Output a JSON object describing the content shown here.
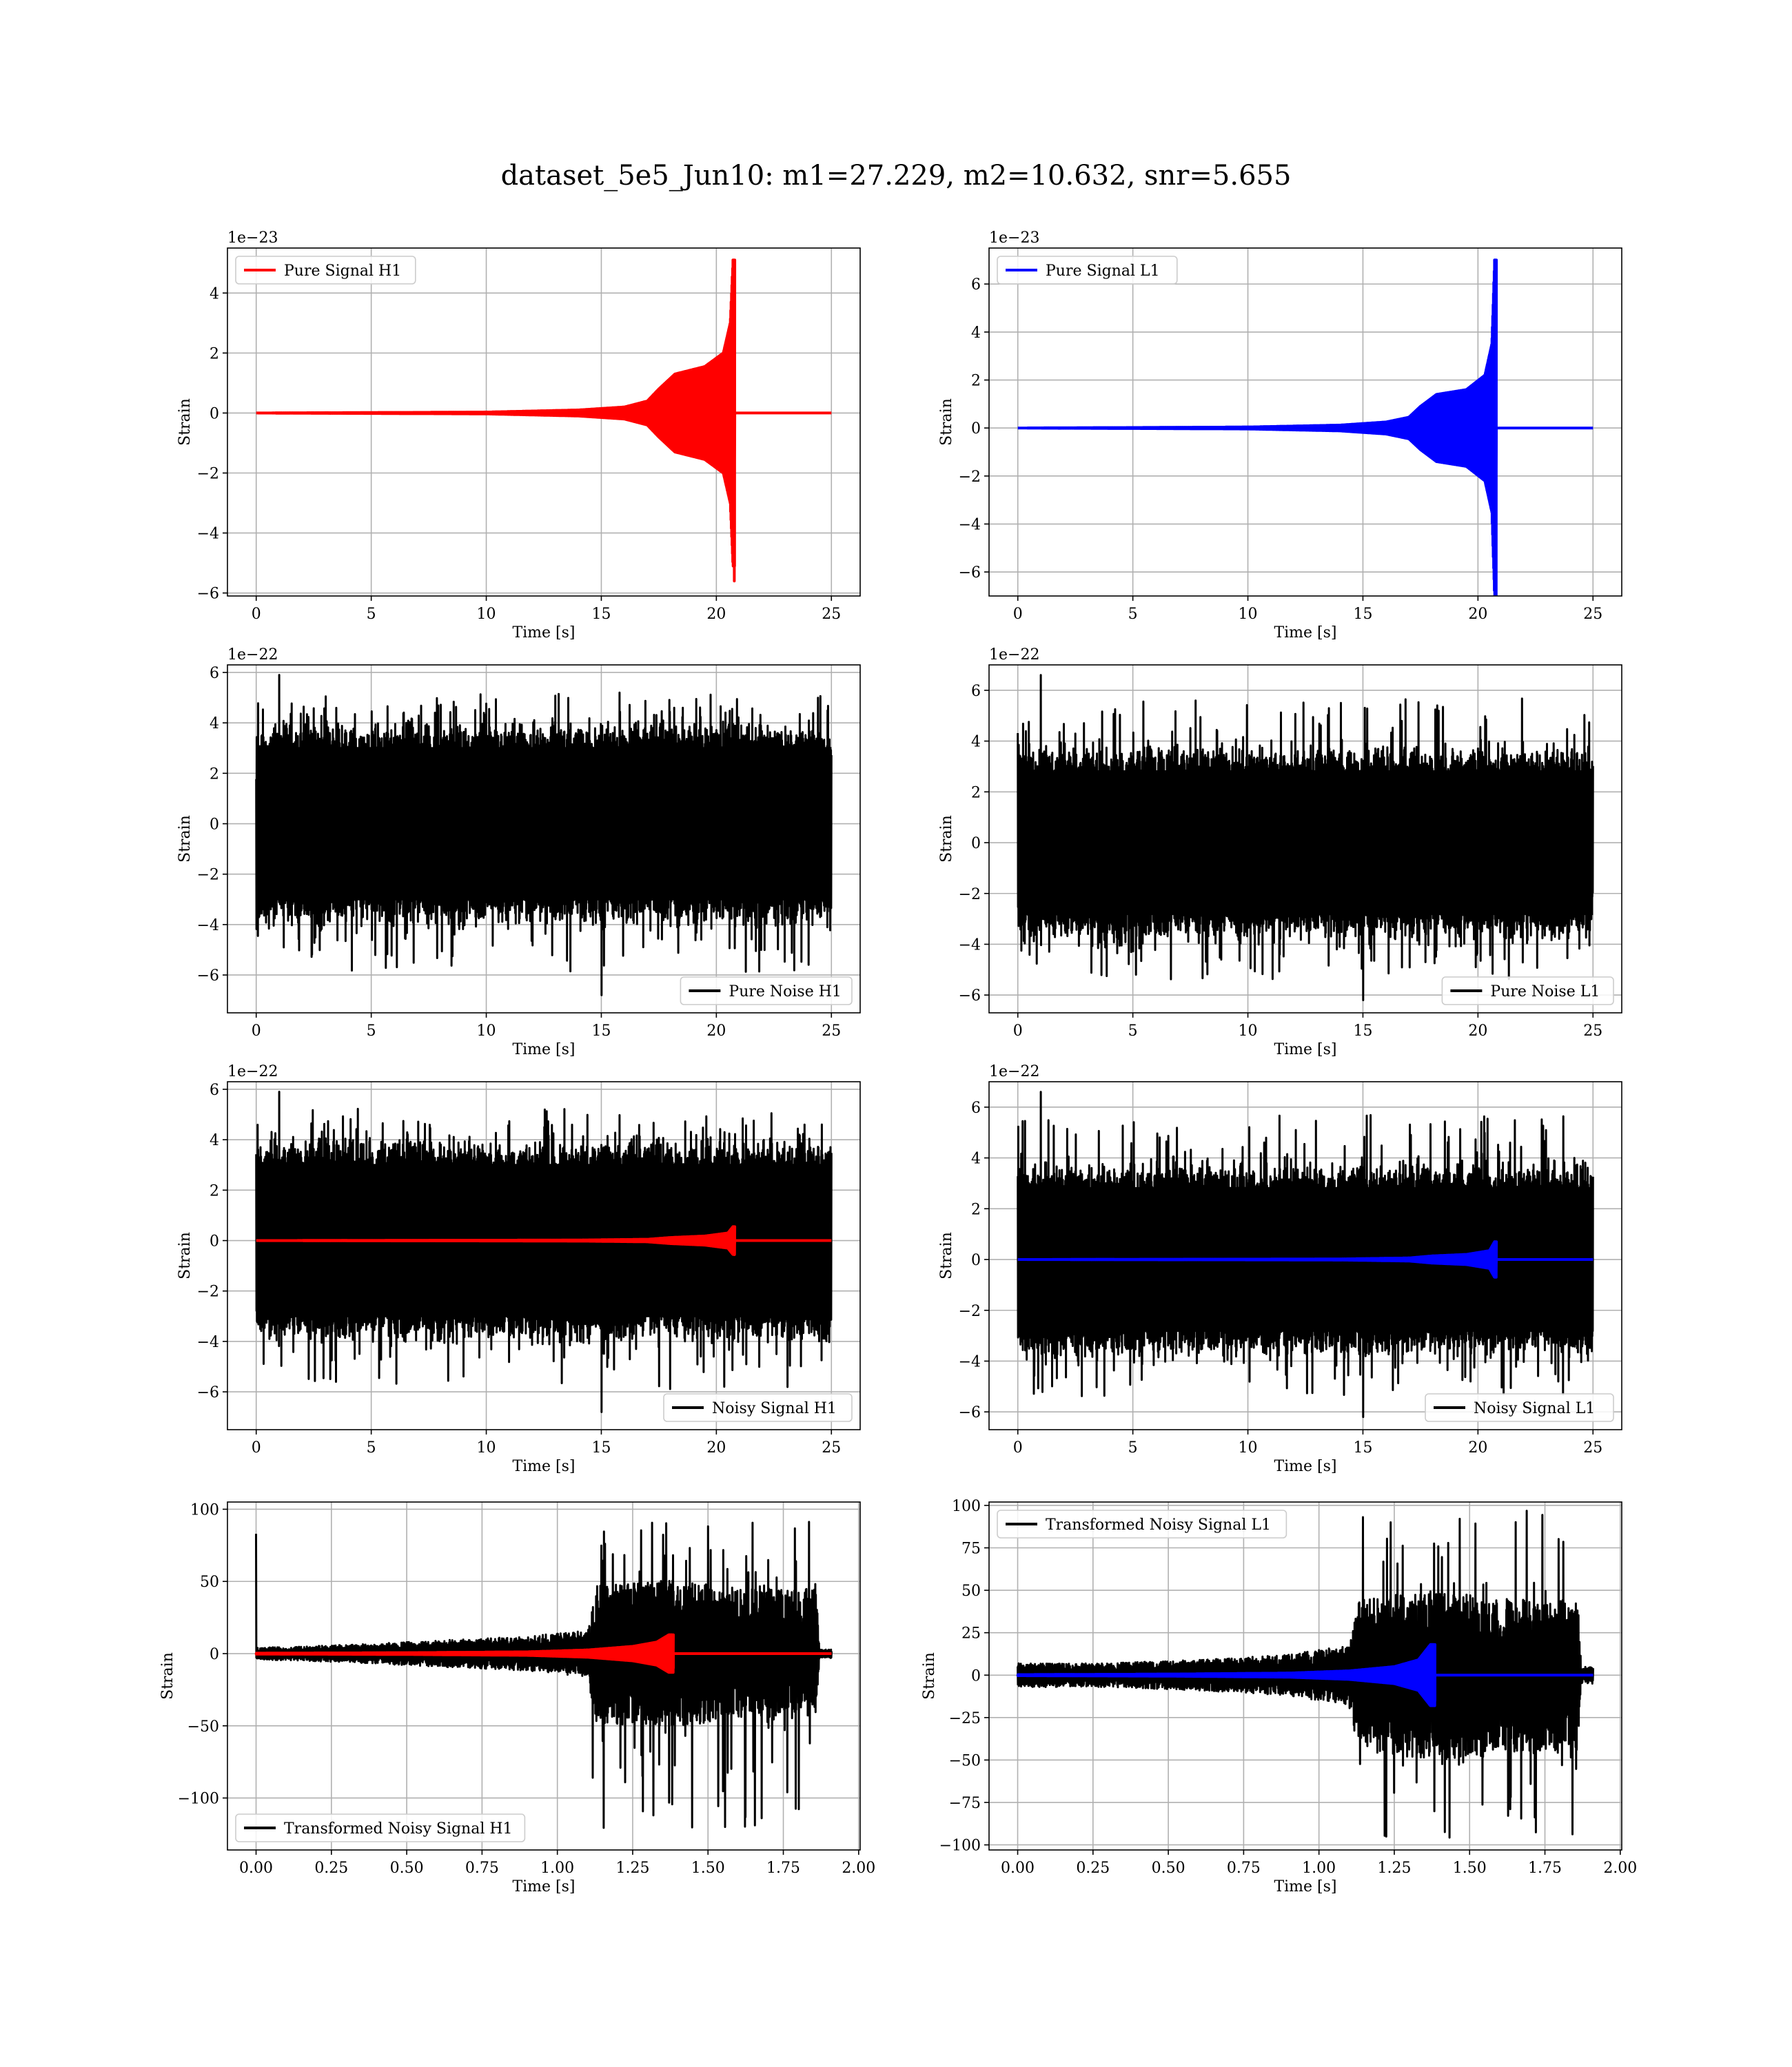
{
  "figure": {
    "title": "dataset_5e5_Jun10: m1=27.229, m2=10.632, snr=5.655"
  },
  "colors": {
    "h1": "#ff0000",
    "l1": "#0000ff",
    "noise": "#000000",
    "grid": "#b0b0b0"
  },
  "chart_data": [
    {
      "id": "pure-signal-h1",
      "type": "line",
      "xlabel": "Time [s]",
      "ylabel": "Strain",
      "offset_text": "1e−23",
      "xlim": [
        -1.25,
        26.25
      ],
      "ylim": [
        -6.1,
        5.5
      ],
      "xticks": [
        0,
        5,
        10,
        15,
        20,
        25
      ],
      "yticks": [
        -6,
        -4,
        -2,
        0,
        2,
        4
      ],
      "ytick_labels": [
        "−6",
        "−4",
        "−2",
        "0",
        "2",
        "4"
      ],
      "legend": "top-left",
      "series": [
        {
          "name": "Pure Signal H1",
          "color": "#ff0000",
          "kind": "chirp",
          "x_end": 20.8,
          "envelope": [
            [
              0,
              0
            ],
            [
              10,
              0.03
            ],
            [
              14,
              0.1
            ],
            [
              16,
              0.2
            ],
            [
              17,
              0.4
            ],
            [
              17.5,
              0.8
            ],
            [
              18.2,
              1.3
            ],
            [
              19.5,
              1.55
            ],
            [
              20.3,
              2.0
            ],
            [
              20.6,
              3.0
            ],
            [
              20.72,
              5.1
            ],
            [
              20.75,
              -5.6
            ]
          ],
          "peak_max": 5.1,
          "peak_min": -5.6,
          "legend": true
        }
      ]
    },
    {
      "id": "pure-signal-l1",
      "type": "line",
      "xlabel": "Time [s]",
      "ylabel": "Strain",
      "offset_text": "1e−23",
      "xlim": [
        -1.25,
        26.25
      ],
      "ylim": [
        -7.0,
        7.5
      ],
      "xticks": [
        0,
        5,
        10,
        15,
        20,
        25
      ],
      "yticks": [
        -6,
        -4,
        -2,
        0,
        2,
        4,
        6
      ],
      "ytick_labels": [
        "−6",
        "−4",
        "−2",
        "0",
        "2",
        "4",
        "6"
      ],
      "legend": "top-left",
      "series": [
        {
          "name": "Pure Signal L1",
          "color": "#0000ff",
          "kind": "chirp",
          "x_end": 20.8,
          "envelope": [
            [
              0,
              0
            ],
            [
              10,
              0.04
            ],
            [
              14,
              0.12
            ],
            [
              16,
              0.25
            ],
            [
              17,
              0.45
            ],
            [
              17.5,
              0.9
            ],
            [
              18.2,
              1.4
            ],
            [
              19.5,
              1.6
            ],
            [
              20.3,
              2.2
            ],
            [
              20.6,
              3.5
            ],
            [
              20.72,
              7.0
            ],
            [
              20.75,
              -6.5
            ]
          ],
          "peak_max": 7.0,
          "peak_min": -6.5,
          "legend": true
        }
      ]
    },
    {
      "id": "pure-noise-h1",
      "type": "line",
      "xlabel": "Time [s]",
      "ylabel": "Strain",
      "offset_text": "1e−22",
      "xlim": [
        -1.25,
        26.25
      ],
      "ylim": [
        -7.5,
        6.3
      ],
      "xticks": [
        0,
        5,
        10,
        15,
        20,
        25
      ],
      "yticks": [
        -6,
        -4,
        -2,
        0,
        2,
        4,
        6
      ],
      "ytick_labels": [
        "−6",
        "−4",
        "−2",
        "0",
        "2",
        "4",
        "6"
      ],
      "legend": "bottom-right",
      "series": [
        {
          "name": "Pure Noise H1",
          "color": "#000000",
          "kind": "noise",
          "x_range": [
            0,
            25
          ],
          "core": 3.2,
          "max": 5.9,
          "min": -6.8,
          "legend": true
        }
      ]
    },
    {
      "id": "pure-noise-l1",
      "type": "line",
      "xlabel": "Time [s]",
      "ylabel": "Strain",
      "offset_text": "1e−22",
      "xlim": [
        -1.25,
        26.25
      ],
      "ylim": [
        -6.7,
        7.0
      ],
      "xticks": [
        0,
        5,
        10,
        15,
        20,
        25
      ],
      "yticks": [
        -6,
        -4,
        -2,
        0,
        2,
        4,
        6
      ],
      "ytick_labels": [
        "−6",
        "−4",
        "−2",
        "0",
        "2",
        "4",
        "6"
      ],
      "legend": "bottom-right",
      "series": [
        {
          "name": "Pure Noise L1",
          "color": "#000000",
          "kind": "noise",
          "x_range": [
            0,
            25
          ],
          "core": 3.0,
          "max": 6.6,
          "min": -6.2,
          "legend": true
        }
      ]
    },
    {
      "id": "noisy-signal-h1",
      "type": "line",
      "xlabel": "Time [s]",
      "ylabel": "Strain",
      "offset_text": "1e−22",
      "xlim": [
        -1.25,
        26.25
      ],
      "ylim": [
        -7.5,
        6.3
      ],
      "xticks": [
        0,
        5,
        10,
        15,
        20,
        25
      ],
      "yticks": [
        -6,
        -4,
        -2,
        0,
        2,
        4,
        6
      ],
      "ytick_labels": [
        "−6",
        "−4",
        "−2",
        "0",
        "2",
        "4",
        "6"
      ],
      "legend": "bottom-right",
      "series": [
        {
          "name": "Noisy Signal H1",
          "color": "#000000",
          "kind": "noise",
          "x_range": [
            0,
            25
          ],
          "core": 3.2,
          "max": 5.9,
          "min": -6.8,
          "legend": true
        },
        {
          "name": "",
          "color": "#ff0000",
          "kind": "chirp",
          "x_end": 20.8,
          "envelope": [
            [
              0,
              0
            ],
            [
              14,
              0.02
            ],
            [
              17,
              0.05
            ],
            [
              18,
              0.12
            ],
            [
              19.5,
              0.18
            ],
            [
              20.5,
              0.3
            ],
            [
              20.72,
              0.55
            ],
            [
              20.75,
              -0.56
            ]
          ],
          "peak_max": 0.55,
          "peak_min": -0.56,
          "legend": false
        }
      ]
    },
    {
      "id": "noisy-signal-l1",
      "type": "line",
      "xlabel": "Time [s]",
      "ylabel": "Strain",
      "offset_text": "1e−22",
      "xlim": [
        -1.25,
        26.25
      ],
      "ylim": [
        -6.7,
        7.0
      ],
      "xticks": [
        0,
        5,
        10,
        15,
        20,
        25
      ],
      "yticks": [
        -6,
        -4,
        -2,
        0,
        2,
        4,
        6
      ],
      "ytick_labels": [
        "−6",
        "−4",
        "−2",
        "0",
        "2",
        "4",
        "6"
      ],
      "legend": "bottom-right",
      "series": [
        {
          "name": "Noisy Signal L1",
          "color": "#000000",
          "kind": "noise",
          "x_range": [
            0,
            25
          ],
          "core": 3.0,
          "max": 6.6,
          "min": -6.2,
          "legend": true
        },
        {
          "name": "",
          "color": "#0000ff",
          "kind": "chirp",
          "x_end": 20.8,
          "envelope": [
            [
              0,
              0
            ],
            [
              14,
              0.02
            ],
            [
              17,
              0.06
            ],
            [
              18,
              0.14
            ],
            [
              19.5,
              0.2
            ],
            [
              20.5,
              0.35
            ],
            [
              20.72,
              0.7
            ],
            [
              20.75,
              -0.65
            ]
          ],
          "peak_max": 0.7,
          "peak_min": -0.65,
          "legend": false
        }
      ]
    },
    {
      "id": "transformed-h1",
      "type": "line",
      "xlabel": "Time [s]",
      "ylabel": "Strain",
      "offset_text": "",
      "xlim": [
        -0.095,
        2.005
      ],
      "ylim": [
        -136,
        105
      ],
      "xticks": [
        0.0,
        0.25,
        0.5,
        0.75,
        1.0,
        1.25,
        1.5,
        1.75,
        2.0
      ],
      "xtick_labels": [
        "0.00",
        "0.25",
        "0.50",
        "0.75",
        "1.00",
        "1.25",
        "1.50",
        "1.75",
        "2.00"
      ],
      "yticks": [
        -100,
        -50,
        0,
        50,
        100
      ],
      "ytick_labels": [
        "−100",
        "−50",
        "0",
        "50",
        "100"
      ],
      "legend": "bottom-left",
      "series": [
        {
          "name": "Transformed Noisy Signal H1",
          "color": "#000000",
          "kind": "tnoise",
          "x_range": [
            0,
            1.91
          ],
          "spike": 83,
          "max": 93,
          "min": -128,
          "legend": true,
          "envelope": [
            [
              0,
              4
            ],
            [
              0.3,
              6
            ],
            [
              0.6,
              9
            ],
            [
              0.9,
              12
            ],
            [
              1.1,
              16
            ],
            [
              1.13,
              48
            ],
            [
              1.4,
              52
            ],
            [
              1.6,
              45
            ],
            [
              1.86,
              45
            ],
            [
              1.87,
              3
            ],
            [
              1.91,
              3
            ]
          ]
        },
        {
          "name": "",
          "color": "#ff0000",
          "kind": "tchirp",
          "x_end": 1.385,
          "envelope": [
            [
              0,
              0.3
            ],
            [
              0.5,
              0.6
            ],
            [
              0.9,
              1.2
            ],
            [
              1.1,
              2.5
            ],
            [
              1.25,
              5
            ],
            [
              1.33,
              8
            ],
            [
              1.37,
              13
            ],
            [
              1.385,
              -10
            ]
          ],
          "legend": false
        }
      ]
    },
    {
      "id": "transformed-l1",
      "type": "line",
      "xlabel": "Time [s]",
      "ylabel": "Strain",
      "offset_text": "",
      "xlim": [
        -0.095,
        2.005
      ],
      "ylim": [
        -103,
        102
      ],
      "xticks": [
        0.0,
        0.25,
        0.5,
        0.75,
        1.0,
        1.25,
        1.5,
        1.75,
        2.0
      ],
      "xtick_labels": [
        "0.00",
        "0.25",
        "0.50",
        "0.75",
        "1.00",
        "1.25",
        "1.50",
        "1.75",
        "2.00"
      ],
      "yticks": [
        -100,
        -75,
        -50,
        -25,
        0,
        25,
        50,
        75,
        100
      ],
      "ytick_labels": [
        "−100",
        "−75",
        "−50",
        "−25",
        "0",
        "25",
        "50",
        "75",
        "100"
      ],
      "legend": "top-left",
      "series": [
        {
          "name": "Transformed Noisy Signal L1",
          "color": "#000000",
          "kind": "tnoise",
          "x_range": [
            0,
            1.91
          ],
          "spike": 0,
          "max": 97,
          "min": -97,
          "legend": true,
          "envelope": [
            [
              0,
              7
            ],
            [
              0.3,
              7
            ],
            [
              0.6,
              9
            ],
            [
              0.9,
              12
            ],
            [
              1.1,
              18
            ],
            [
              1.13,
              45
            ],
            [
              1.4,
              50
            ],
            [
              1.6,
              45
            ],
            [
              1.86,
              45
            ],
            [
              1.87,
              5
            ],
            [
              1.91,
              5
            ]
          ]
        },
        {
          "name": "",
          "color": "#0000ff",
          "kind": "tchirp",
          "x_end": 1.385,
          "envelope": [
            [
              0,
              0.3
            ],
            [
              0.5,
              0.6
            ],
            [
              0.9,
              1.2
            ],
            [
              1.1,
              2.5
            ],
            [
              1.25,
              5
            ],
            [
              1.33,
              9
            ],
            [
              1.37,
              18
            ],
            [
              1.385,
              -15
            ]
          ],
          "legend": false
        }
      ]
    }
  ]
}
